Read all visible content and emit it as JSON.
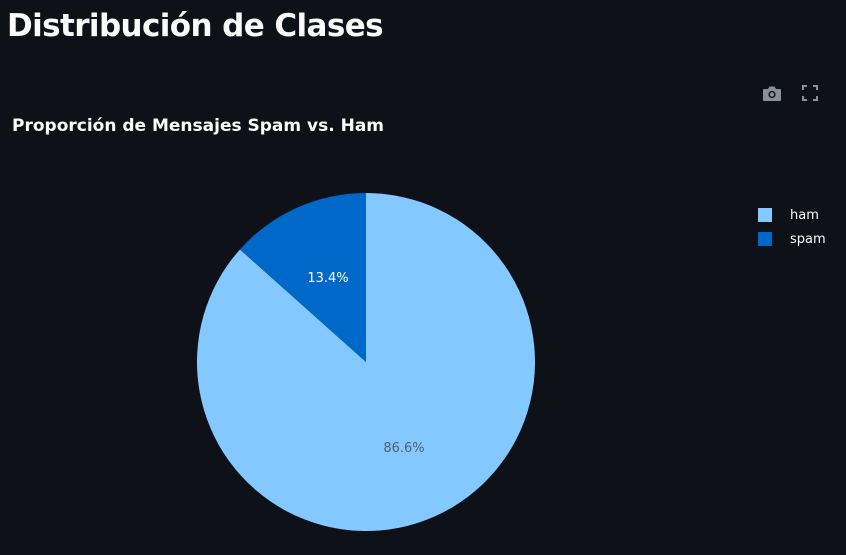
{
  "page": {
    "title": "Distribución de Clases"
  },
  "toolbar": {
    "icons": [
      "camera-icon",
      "fullscreen-icon"
    ]
  },
  "chart_data": {
    "type": "pie",
    "title": "Proporción de Mensajes Spam vs. Ham",
    "slices": [
      {
        "name": "ham",
        "value": 86.6,
        "label": "86.6%",
        "color": "#83c9ff",
        "text_color": "#555e6b"
      },
      {
        "name": "spam",
        "value": 13.4,
        "label": "13.4%",
        "color": "#0068c9",
        "text_color": "#ffffff"
      }
    ],
    "legend": {
      "placement": "top-right",
      "items": [
        "ham",
        "spam"
      ]
    }
  },
  "colors": {
    "background": "#0e1117",
    "text": "#fafafa",
    "icon": "#8a8f98"
  }
}
